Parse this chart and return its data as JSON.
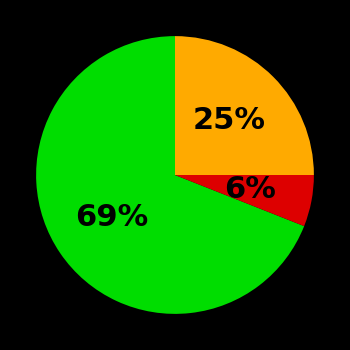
{
  "slices": [
    69,
    6,
    25
  ],
  "colors": [
    "#00dd00",
    "#dd0000",
    "#ffaa00"
  ],
  "labels": [
    "69%",
    "6%",
    "25%"
  ],
  "label_colors": [
    "#000000",
    "#000000",
    "#000000"
  ],
  "background_color": "#000000",
  "startangle": 90,
  "label_fontsize": 22,
  "label_fontweight": "bold",
  "label_radii": [
    0.55,
    0.55,
    0.55
  ]
}
